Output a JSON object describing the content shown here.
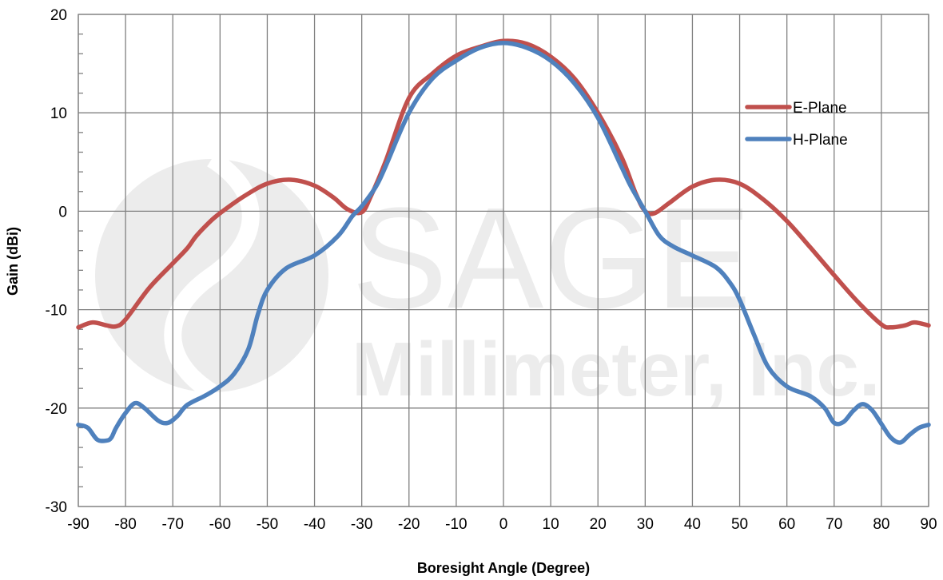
{
  "chart_data": {
    "type": "line",
    "title": "",
    "xlabel": "Boresight Angle (Degree)",
    "ylabel": "Gain (dBi)",
    "xlim": [
      -90,
      90
    ],
    "ylim": [
      -30,
      20
    ],
    "x_ticks": [
      -90,
      -80,
      -70,
      -60,
      -50,
      -40,
      -30,
      -20,
      -10,
      0,
      10,
      20,
      30,
      40,
      50,
      60,
      70,
      80,
      90
    ],
    "y_ticks": [
      20,
      10,
      0,
      -10,
      -20,
      -30
    ],
    "grid": "vertical lines every 10 degrees, horizontal lines every 10 dB",
    "legend_position": "right",
    "watermark": {
      "line1": "SAGE",
      "line2": "Millimeter, Inc."
    },
    "series": [
      {
        "name": "E-Plane",
        "color": "#C0504D",
        "points": [
          [
            -90,
            -11.8
          ],
          [
            -87,
            -11.3
          ],
          [
            -84,
            -11.6
          ],
          [
            -82,
            -11.7
          ],
          [
            -80,
            -11
          ],
          [
            -75,
            -7.8
          ],
          [
            -70,
            -5.3
          ],
          [
            -67,
            -3.8
          ],
          [
            -65,
            -2.5
          ],
          [
            -62,
            -1
          ],
          [
            -60,
            -0.2
          ],
          [
            -55,
            1.5
          ],
          [
            -50,
            2.8
          ],
          [
            -45,
            3.2
          ],
          [
            -40,
            2.6
          ],
          [
            -36,
            1.4
          ],
          [
            -33,
            0.2
          ],
          [
            -30,
            -0.1
          ],
          [
            -28,
            1.6
          ],
          [
            -25,
            5
          ],
          [
            -20,
            11.5
          ],
          [
            -15,
            14
          ],
          [
            -10,
            15.8
          ],
          [
            -5,
            16.7
          ],
          [
            0,
            17.3
          ],
          [
            5,
            17
          ],
          [
            10,
            15.7
          ],
          [
            15,
            13.5
          ],
          [
            20,
            10
          ],
          [
            25,
            5.5
          ],
          [
            28,
            1.8
          ],
          [
            30,
            0
          ],
          [
            32,
            -0.2
          ],
          [
            35,
            0.8
          ],
          [
            40,
            2.5
          ],
          [
            45,
            3.2
          ],
          [
            50,
            2.8
          ],
          [
            55,
            1.2
          ],
          [
            60,
            -1
          ],
          [
            65,
            -3.7
          ],
          [
            70,
            -6.5
          ],
          [
            75,
            -9.2
          ],
          [
            80,
            -11.5
          ],
          [
            82,
            -11.8
          ],
          [
            85,
            -11.6
          ],
          [
            87,
            -11.3
          ],
          [
            90,
            -11.6
          ]
        ]
      },
      {
        "name": "H-Plane",
        "color": "#4F81BD",
        "points": [
          [
            -90,
            -21.7
          ],
          [
            -88,
            -22
          ],
          [
            -86,
            -23.2
          ],
          [
            -84,
            -23.3
          ],
          [
            -83,
            -23
          ],
          [
            -82,
            -22
          ],
          [
            -80,
            -20.5
          ],
          [
            -78,
            -19.5
          ],
          [
            -76,
            -20
          ],
          [
            -73,
            -21.3
          ],
          [
            -71,
            -21.5
          ],
          [
            -69,
            -20.8
          ],
          [
            -67,
            -19.7
          ],
          [
            -63,
            -18.7
          ],
          [
            -60,
            -17.8
          ],
          [
            -57,
            -16.5
          ],
          [
            -54,
            -14
          ],
          [
            -52,
            -10.5
          ],
          [
            -50,
            -8
          ],
          [
            -46,
            -5.8
          ],
          [
            -40,
            -4.5
          ],
          [
            -35,
            -2.5
          ],
          [
            -32,
            -0.5
          ],
          [
            -30,
            0.5
          ],
          [
            -27,
            2.5
          ],
          [
            -25,
            4.5
          ],
          [
            -20,
            10
          ],
          [
            -15,
            13.5
          ],
          [
            -10,
            15.3
          ],
          [
            -5,
            16.6
          ],
          [
            0,
            17.1
          ],
          [
            5,
            16.6
          ],
          [
            10,
            15.3
          ],
          [
            15,
            13
          ],
          [
            20,
            9.5
          ],
          [
            25,
            4.5
          ],
          [
            27,
            2.5
          ],
          [
            30,
            0
          ],
          [
            33,
            -2.5
          ],
          [
            36,
            -3.6
          ],
          [
            40,
            -4.5
          ],
          [
            45,
            -5.7
          ],
          [
            48,
            -7.3
          ],
          [
            50,
            -9
          ],
          [
            53,
            -12.5
          ],
          [
            56,
            -15.8
          ],
          [
            60,
            -17.8
          ],
          [
            65,
            -18.8
          ],
          [
            68,
            -20
          ],
          [
            70,
            -21.5
          ],
          [
            72,
            -21.4
          ],
          [
            74,
            -20.3
          ],
          [
            76,
            -19.6
          ],
          [
            78,
            -20.2
          ],
          [
            80,
            -21.6
          ],
          [
            82,
            -23
          ],
          [
            84,
            -23.5
          ],
          [
            86,
            -22.7
          ],
          [
            88,
            -22
          ],
          [
            90,
            -21.7
          ]
        ]
      }
    ]
  }
}
